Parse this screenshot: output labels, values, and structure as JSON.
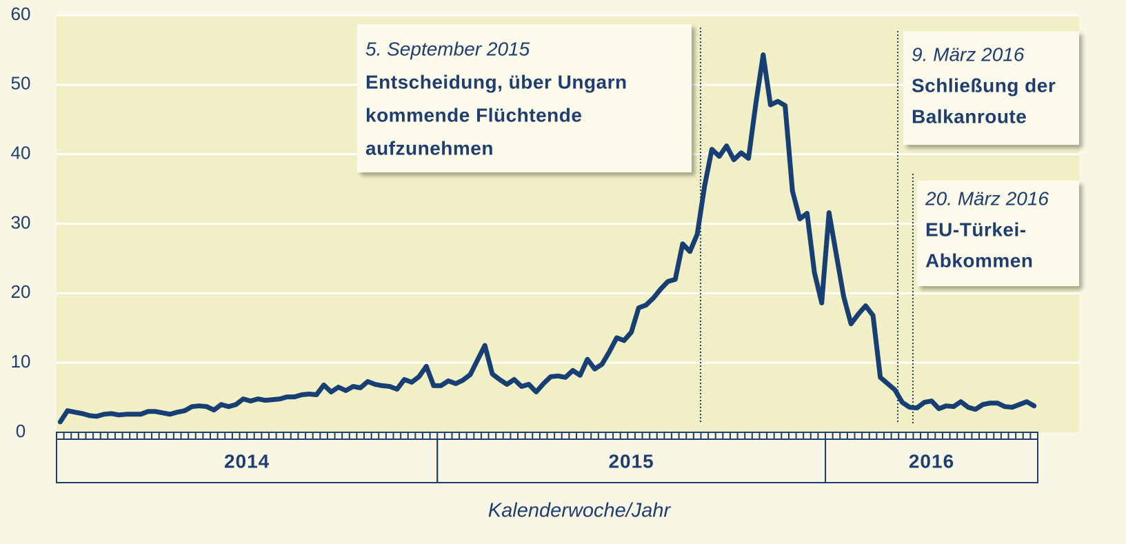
{
  "chart_data": {
    "type": "line",
    "ylim": [
      0,
      60
    ],
    "yticks": [
      0,
      10,
      20,
      30,
      40,
      50,
      60
    ],
    "grid": true,
    "xlabel": "Kalenderwoche/Jahr",
    "years": [
      "2014",
      "2015",
      "2016"
    ],
    "year_weeks": [
      52,
      53,
      29
    ],
    "series": [
      {
        "color": "#173f73",
        "values": [
          1.5,
          3.1,
          2.9,
          2.7,
          2.4,
          2.3,
          2.6,
          2.7,
          2.5,
          2.6,
          2.6,
          2.6,
          3.0,
          3.0,
          2.8,
          2.6,
          2.9,
          3.1,
          3.7,
          3.8,
          3.7,
          3.2,
          4.0,
          3.7,
          4.0,
          4.8,
          4.5,
          4.8,
          4.6,
          4.7,
          4.8,
          5.1,
          5.1,
          5.4,
          5.5,
          5.4,
          6.8,
          5.8,
          6.5,
          6.0,
          6.6,
          6.4,
          7.3,
          6.9,
          6.7,
          6.6,
          6.2,
          7.6,
          7.2,
          8.0,
          9.5,
          6.7,
          6.7,
          7.4,
          7.0,
          7.5,
          8.3,
          10.4,
          12.5,
          8.4,
          7.6,
          6.9,
          7.6,
          6.6,
          6.9,
          5.8,
          7.0,
          8.0,
          8.1,
          7.9,
          8.9,
          8.2,
          10.5,
          9.1,
          9.8,
          11.6,
          13.6,
          13.2,
          14.4,
          17.9,
          18.3,
          19.3,
          20.6,
          21.7,
          22.0,
          27.1,
          26.0,
          28.5,
          35.4,
          40.7,
          39.7,
          41.2,
          39.2,
          40.2,
          39.4,
          47.3,
          54.3,
          47.1,
          47.6,
          47.0,
          34.7,
          30.7,
          31.5,
          23.0,
          18.6,
          31.6,
          25.5,
          19.5,
          15.6,
          17.0,
          18.2,
          16.8,
          7.9,
          7.0,
          6.1,
          4.3,
          3.6,
          3.5,
          4.3,
          4.5,
          3.4,
          3.8,
          3.7,
          4.4,
          3.6,
          3.3,
          4.0,
          4.2,
          4.2,
          3.7,
          3.6,
          4.0,
          4.4,
          3.8
        ]
      }
    ],
    "annotations": [
      {
        "date": "5. September 2015",
        "lines": [
          "Entscheidung, über Ungarn",
          "kommende Flüchtende",
          "aufzunehmen"
        ]
      },
      {
        "date": "9. März 2016",
        "lines": [
          "Schließung der",
          "Balkanroute"
        ]
      },
      {
        "date": "20. März 2016",
        "lines": [
          "EU-Türkei-",
          "Abkommen"
        ]
      }
    ]
  }
}
